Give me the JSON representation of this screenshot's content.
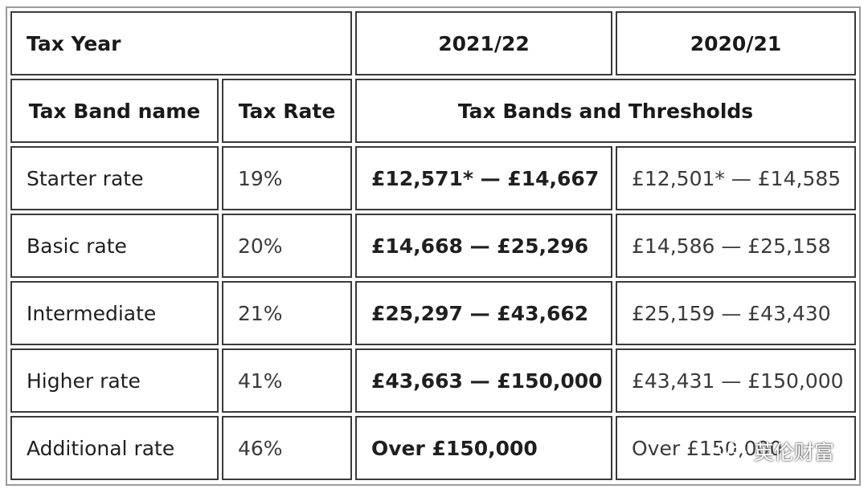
{
  "header_row1": {
    "tax_year": "Tax Year",
    "year_2021": "2021/22",
    "year_2020": "2020/21"
  },
  "header_row2": {
    "band_name": "Tax Band name",
    "tax_rate": "Tax Rate",
    "bands_thresholds": "Tax Bands and Thresholds"
  },
  "rows": [
    {
      "name": "Starter rate",
      "rate": "19%",
      "y2021": "£12,571* — £14,667",
      "y2020": "£12,501* — £14,585"
    },
    {
      "name": "Basic rate",
      "rate": "20%",
      "y2021": "£14,668 — £25,296",
      "y2020": "£14,586 — £25,158"
    },
    {
      "name": "Intermediate",
      "rate": "21%",
      "y2021": "£25,297 — £43,662",
      "y2020": "£25,159 — £43,430"
    },
    {
      "name": "Higher rate",
      "rate": "41%",
      "y2021": "£43,663 — £150,000",
      "y2020": "£43,431 — £150,000"
    },
    {
      "name": "Additional rate",
      "rate": "46%",
      "y2021": "Over £150,000",
      "y2020": "Over £150,000"
    }
  ],
  "watermark": {
    "text": "英伦财富",
    "icon": "wechat-icon"
  }
}
